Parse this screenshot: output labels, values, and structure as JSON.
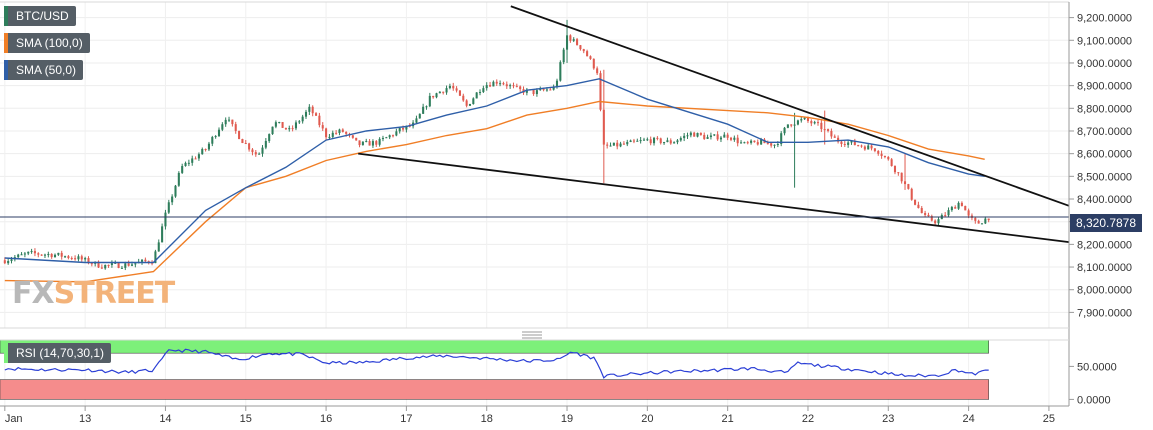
{
  "legend": {
    "symbol": "BTC/USD",
    "sma100": "SMA (100,0)",
    "sma50": "SMA (50,0)",
    "rsi": "RSI (14,70,30,1)"
  },
  "colors": {
    "candle_up": "#2e7d5b",
    "candle_down": "#e05a4f",
    "sma100": "#f07e26",
    "sma50": "#2f5fa8",
    "trendline": "#111111",
    "rsi_line": "#2b3fd6",
    "rsi_overbought": "#7df07a",
    "rsi_oversold": "#f58c8c",
    "current_price": "#2c3e64"
  },
  "watermark": {
    "part1": "FX",
    "part2": "STREET"
  },
  "current_price_label": "8,320.7878",
  "chart_data": {
    "type": "candlestick",
    "symbol": "BTC/USD",
    "x_ticks": [
      {
        "label": "Jan",
        "day": 12
      },
      {
        "label": "13",
        "day": 13
      },
      {
        "label": "14",
        "day": 14
      },
      {
        "label": "15",
        "day": 15
      },
      {
        "label": "16",
        "day": 16
      },
      {
        "label": "17",
        "day": 17
      },
      {
        "label": "18",
        "day": 18
      },
      {
        "label": "19",
        "day": 19
      },
      {
        "label": "20",
        "day": 20
      },
      {
        "label": "21",
        "day": 21
      },
      {
        "label": "22",
        "day": 22
      },
      {
        "label": "23",
        "day": 23
      },
      {
        "label": "24",
        "day": 24
      },
      {
        "label": "25",
        "day": 25
      }
    ],
    "xlim_days": [
      12,
      25.25
    ],
    "ylim": [
      7840,
      9260
    ],
    "y_ticks": [
      {
        "value": 7900,
        "label": "7,900.0000"
      },
      {
        "value": 8000,
        "label": "8,000.0000"
      },
      {
        "value": 8100,
        "label": "8,100.0000"
      },
      {
        "value": 8200,
        "label": "8,200.0000"
      },
      {
        "value": 8300,
        "label": "8,300.0000"
      },
      {
        "value": 8400,
        "label": "8,400.0000"
      },
      {
        "value": 8500,
        "label": "8,500.0000"
      },
      {
        "value": 8600,
        "label": "8,600.0000"
      },
      {
        "value": 8700,
        "label": "8,700.0000"
      },
      {
        "value": 8800,
        "label": "8,800.0000"
      },
      {
        "value": 8900,
        "label": "8,900.0000"
      },
      {
        "value": 9000,
        "label": "9,000.0000"
      },
      {
        "value": 9100,
        "label": "9,100.0000"
      },
      {
        "value": 9200,
        "label": "9,200.0000"
      }
    ],
    "current_price": 8320.7878,
    "close_anchors": [
      [
        12.0,
        8130
      ],
      [
        12.3,
        8160
      ],
      [
        12.6,
        8155
      ],
      [
        12.9,
        8140
      ],
      [
        13.2,
        8105
      ],
      [
        13.5,
        8110
      ],
      [
        13.85,
        8130
      ],
      [
        14.0,
        8330
      ],
      [
        14.2,
        8540
      ],
      [
        14.5,
        8620
      ],
      [
        14.75,
        8760
      ],
      [
        14.95,
        8660
      ],
      [
        15.15,
        8590
      ],
      [
        15.35,
        8740
      ],
      [
        15.55,
        8700
      ],
      [
        15.8,
        8800
      ],
      [
        16.0,
        8680
      ],
      [
        16.2,
        8700
      ],
      [
        16.4,
        8640
      ],
      [
        16.65,
        8650
      ],
      [
        16.9,
        8700
      ],
      [
        17.1,
        8730
      ],
      [
        17.3,
        8850
      ],
      [
        17.55,
        8900
      ],
      [
        17.75,
        8810
      ],
      [
        17.95,
        8900
      ],
      [
        18.15,
        8920
      ],
      [
        18.4,
        8880
      ],
      [
        18.6,
        8870
      ],
      [
        18.85,
        8890
      ],
      [
        19.0,
        9120
      ],
      [
        19.2,
        9060
      ],
      [
        19.38,
        8960
      ],
      [
        19.45,
        8630
      ],
      [
        19.7,
        8640
      ],
      [
        20.0,
        8660
      ],
      [
        20.3,
        8650
      ],
      [
        20.55,
        8690
      ],
      [
        20.75,
        8670
      ],
      [
        21.0,
        8680
      ],
      [
        21.2,
        8640
      ],
      [
        21.4,
        8650
      ],
      [
        21.6,
        8640
      ],
      [
        21.75,
        8730
      ],
      [
        21.95,
        8750
      ],
      [
        22.15,
        8720
      ],
      [
        22.35,
        8660
      ],
      [
        22.6,
        8640
      ],
      [
        22.85,
        8620
      ],
      [
        23.0,
        8570
      ],
      [
        23.15,
        8500
      ],
      [
        23.3,
        8400
      ],
      [
        23.45,
        8320
      ],
      [
        23.6,
        8300
      ],
      [
        23.8,
        8360
      ],
      [
        23.9,
        8390
      ],
      [
        24.0,
        8320
      ],
      [
        24.1,
        8290
      ],
      [
        24.25,
        8320
      ]
    ],
    "spikes": [
      {
        "day": 19.45,
        "low": 8470,
        "high": 8970
      },
      {
        "day": 19.0,
        "low": 9000,
        "high": 9190
      },
      {
        "day": 21.85,
        "low": 8450,
        "high": 8780
      },
      {
        "day": 22.2,
        "low": 8640,
        "high": 8790
      },
      {
        "day": 23.2,
        "low": 8440,
        "high": 8600
      }
    ],
    "sma100": [
      [
        12.0,
        8040
      ],
      [
        13.0,
        8035
      ],
      [
        13.85,
        8080
      ],
      [
        14.5,
        8300
      ],
      [
        15.0,
        8450
      ],
      [
        15.5,
        8500
      ],
      [
        16.0,
        8570
      ],
      [
        16.5,
        8610
      ],
      [
        17.0,
        8640
      ],
      [
        17.5,
        8680
      ],
      [
        18.0,
        8710
      ],
      [
        18.5,
        8770
      ],
      [
        19.0,
        8800
      ],
      [
        19.4,
        8830
      ],
      [
        20.0,
        8810
      ],
      [
        21.0,
        8790
      ],
      [
        21.5,
        8780
      ],
      [
        22.0,
        8760
      ],
      [
        22.5,
        8730
      ],
      [
        23.0,
        8680
      ],
      [
        23.5,
        8620
      ],
      [
        24.0,
        8590
      ],
      [
        24.2,
        8575
      ]
    ],
    "sma50": [
      [
        12.0,
        8140
      ],
      [
        13.0,
        8120
      ],
      [
        13.85,
        8120
      ],
      [
        14.5,
        8350
      ],
      [
        15.0,
        8450
      ],
      [
        15.5,
        8540
      ],
      [
        16.0,
        8660
      ],
      [
        16.5,
        8700
      ],
      [
        17.0,
        8720
      ],
      [
        17.5,
        8770
      ],
      [
        18.0,
        8810
      ],
      [
        18.5,
        8880
      ],
      [
        19.0,
        8900
      ],
      [
        19.4,
        8930
      ],
      [
        20.0,
        8840
      ],
      [
        21.0,
        8730
      ],
      [
        21.5,
        8650
      ],
      [
        22.0,
        8650
      ],
      [
        22.5,
        8660
      ],
      [
        23.0,
        8630
      ],
      [
        23.5,
        8560
      ],
      [
        24.0,
        8510
      ],
      [
        24.2,
        8500
      ]
    ],
    "trendlines": [
      {
        "name": "descending resistance",
        "from": [
          18.3,
          9250
        ],
        "to": [
          25.25,
          8370
        ]
      },
      {
        "name": "descending support",
        "from": [
          16.4,
          8600
        ],
        "to": [
          25.25,
          8210
        ]
      }
    ],
    "rsi": {
      "label": "RSI (14,70,30,1)",
      "ylim": [
        -10,
        90
      ],
      "y_ticks": [
        {
          "value": 50,
          "label": "50.0000"
        },
        {
          "value": 0,
          "label": "0.0000"
        }
      ],
      "overbought_band": [
        70,
        100
      ],
      "oversold_band": [
        0,
        30
      ],
      "anchors": [
        [
          12.0,
          47
        ],
        [
          12.5,
          45
        ],
        [
          13.0,
          45
        ],
        [
          13.5,
          41
        ],
        [
          13.85,
          44
        ],
        [
          14.05,
          75
        ],
        [
          14.5,
          72
        ],
        [
          14.9,
          60
        ],
        [
          15.3,
          70
        ],
        [
          15.7,
          68
        ],
        [
          16.0,
          55
        ],
        [
          16.5,
          56
        ],
        [
          17.0,
          63
        ],
        [
          17.5,
          66
        ],
        [
          18.0,
          62
        ],
        [
          18.5,
          58
        ],
        [
          18.9,
          60
        ],
        [
          19.05,
          72
        ],
        [
          19.35,
          62
        ],
        [
          19.45,
          35
        ],
        [
          19.8,
          38
        ],
        [
          20.3,
          42
        ],
        [
          20.8,
          44
        ],
        [
          21.3,
          47
        ],
        [
          21.75,
          40
        ],
        [
          21.85,
          55
        ],
        [
          22.3,
          49
        ],
        [
          22.8,
          42
        ],
        [
          23.2,
          36
        ],
        [
          23.6,
          36
        ],
        [
          23.85,
          45
        ],
        [
          24.05,
          38
        ],
        [
          24.25,
          44
        ]
      ]
    }
  }
}
